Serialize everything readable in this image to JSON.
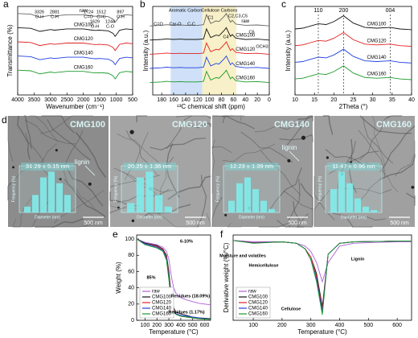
{
  "chart_data": [
    {
      "type": "line",
      "panel": "a",
      "xlabel": "Wavenumber (cm⁻¹)",
      "ylabel": "Transmittance (%)",
      "xlim": [
        4000,
        500
      ],
      "xticks": [
        4000,
        3500,
        3000,
        2500,
        2000,
        1500,
        1000,
        500
      ],
      "ylim": [
        0,
        100
      ],
      "x": [
        4000,
        3600,
        3326,
        3000,
        2881,
        2500,
        2000,
        1724,
        1629,
        1512,
        1244,
        1100,
        1030,
        897,
        700,
        500
      ],
      "series": [
        {
          "name": "raw",
          "color": "#666666",
          "values": [
            92,
            91.3,
            87.8,
            89.9,
            89.2,
            90.6,
            90.6,
            89.2,
            88.9,
            89.2,
            88.5,
            85.7,
            82.2,
            89.2,
            90.6,
            89.9
          ]
        },
        {
          "name": "CMG100",
          "color": "#111111",
          "values": [
            76,
            75.3,
            71.8,
            73.9,
            73.2,
            74.6,
            74.6,
            73.2,
            72.9,
            73.2,
            72.5,
            69.7,
            66.2,
            73.2,
            74.6,
            73.9
          ]
        },
        {
          "name": "CMG120",
          "color": "#e02020",
          "values": [
            60,
            59.3,
            55.8,
            57.9,
            57.2,
            58.6,
            58.6,
            57.2,
            56.9,
            57.2,
            56.5,
            53.7,
            50.2,
            57.2,
            58.6,
            57.9
          ]
        },
        {
          "name": "CMG140",
          "color": "#2040e0",
          "values": [
            44,
            43.3,
            39.8,
            41.9,
            41.2,
            42.6,
            42.6,
            41.2,
            40.9,
            41.2,
            40.5,
            37.7,
            34.2,
            41.2,
            42.6,
            41.9
          ]
        },
        {
          "name": "CMG160",
          "color": "#1a9a2a",
          "values": [
            28,
            27.3,
            23.8,
            25.9,
            25.2,
            26.6,
            26.6,
            25.2,
            24.9,
            25.2,
            24.5,
            21.7,
            18.2,
            25.2,
            26.6,
            25.9
          ]
        }
      ],
      "inline_labels": true,
      "annotations": [
        "3326",
        "O-H",
        "2881",
        "C-H",
        "1724",
        "C=O",
        "1629",
        "O-H",
        "1512",
        "C=C",
        "1244",
        "C-O",
        "897",
        "C-H"
      ]
    },
    {
      "type": "line",
      "panel": "b",
      "xlabel": "¹³C chemical shift (ppm)",
      "ylabel": "Intensity (a.u.)",
      "xlim": [
        195,
        0
      ],
      "xticks": [
        180,
        160,
        140,
        120,
        100,
        80,
        60,
        40,
        20,
        0
      ],
      "ylim": [
        0,
        100
      ],
      "bands": [
        {
          "label": "Aromatic Carbons",
          "x": [
            165,
            112
          ],
          "color": "#cfe0f8"
        },
        {
          "label": "Cellulose Carbons",
          "x": [
            112,
            55
          ],
          "color": "#f8f0c8"
        }
      ],
      "x": [
        200,
        180,
        172,
        160,
        150,
        140,
        130,
        120,
        110,
        105,
        98,
        89,
        84,
        75,
        72,
        65,
        62,
        56,
        40,
        20,
        0
      ],
      "series": [
        {
          "name": "raw",
          "color": "#666666",
          "values": [
            78,
            78.7,
            79.4,
            78.7,
            79.1,
            78.7,
            78.7,
            78.7,
            79.4,
            90.6,
            80.8,
            83.6,
            82.9,
            89.2,
            92,
            82.2,
            84.3,
            80.1,
            78.7,
            79.1,
            78
          ]
        },
        {
          "name": "CMG100",
          "color": "#111111",
          "values": [
            62,
            62.7,
            63.4,
            62.7,
            63.1,
            62.7,
            62.7,
            62.7,
            63.4,
            74.6,
            64.8,
            67.6,
            66.9,
            73.2,
            76,
            66.2,
            68.3,
            64.1,
            62.7,
            63.1,
            62
          ]
        },
        {
          "name": "CMG120",
          "color": "#e02020",
          "values": [
            46,
            46.7,
            47.4,
            46.7,
            47.1,
            46.7,
            46.7,
            46.7,
            47.4,
            58.6,
            48.8,
            51.6,
            50.9,
            57.2,
            60,
            50.2,
            52.3,
            48.1,
            46.7,
            47.1,
            46
          ]
        },
        {
          "name": "CMG140",
          "color": "#2040e0",
          "values": [
            30,
            30.7,
            31.4,
            30.7,
            31.1,
            30.7,
            30.7,
            30.7,
            31.4,
            42.6,
            32.8,
            35.6,
            34.9,
            41.2,
            44,
            34.2,
            36.3,
            32.1,
            30.7,
            31.1,
            30
          ]
        },
        {
          "name": "CMG160",
          "color": "#1a9a2a",
          "values": [
            14,
            14.7,
            15.4,
            14.7,
            15.1,
            14.7,
            14.7,
            14.7,
            15.4,
            26.6,
            16.8,
            19.6,
            18.9,
            25.2,
            28,
            18.2,
            20.3,
            16.1,
            14.7,
            15.1,
            14
          ]
        }
      ],
      "inline_labels": true,
      "annotations": [
        "C=O",
        "Car-O",
        "C-C",
        "C1",
        "C4",
        "C2,C3,C5",
        "C6",
        "OCH3"
      ]
    },
    {
      "type": "line",
      "panel": "c",
      "xlabel": "2Theta (°)",
      "ylabel": "Intensity (a.u.)",
      "xlim": [
        10,
        40
      ],
      "xticks": [
        10,
        15,
        20,
        25,
        30,
        35,
        40
      ],
      "ylim": [
        0,
        85
      ],
      "vlines": [
        {
          "x": 16,
          "label": "110"
        },
        {
          "x": 22.5,
          "label": "200"
        },
        {
          "x": 34.5,
          "label": "004"
        }
      ],
      "x": [
        10,
        12,
        14,
        16,
        18,
        20,
        22.5,
        25,
        28,
        31,
        34.5,
        37,
        40
      ],
      "series": [
        {
          "name": "CMG100",
          "color": "#111111",
          "values": [
            63.4,
            64.1,
            66.2,
            68.3,
            67.6,
            70.4,
            76,
            69,
            64.8,
            64.1,
            64.8,
            63.4,
            62.7
          ]
        },
        {
          "name": "CMG120",
          "color": "#e02020",
          "values": [
            47.4,
            48.1,
            50.2,
            52.3,
            51.6,
            54.4,
            60,
            53,
            48.8,
            48.1,
            48.8,
            47.4,
            46.7
          ]
        },
        {
          "name": "CMG140",
          "color": "#2040e0",
          "values": [
            31.4,
            32.1,
            34.2,
            36.3,
            35.6,
            38.4,
            44,
            37,
            32.8,
            32.1,
            32.8,
            31.4,
            30.7
          ]
        },
        {
          "name": "CMG160",
          "color": "#1a9a2a",
          "values": [
            15.4,
            16.1,
            18.2,
            20.3,
            19.6,
            22.4,
            28,
            21,
            16.8,
            16.1,
            16.8,
            15.4,
            14.7
          ]
        }
      ],
      "inline_labels": true
    },
    {
      "type": "line",
      "panel": "e",
      "xlabel": "Temperature (°C)",
      "ylabel": "Weight (%)",
      "xlim": [
        30,
        650
      ],
      "xticks": [
        100,
        200,
        300,
        400,
        500,
        600
      ],
      "ylim": [
        0,
        105
      ],
      "yticks": [
        0,
        20,
        40,
        60,
        80,
        100
      ],
      "x": [
        30,
        100,
        200,
        250,
        280,
        300,
        320,
        340,
        360,
        400,
        450,
        500,
        550,
        600,
        650
      ],
      "series": [
        {
          "name": "raw",
          "color": "#b060d8",
          "values": [
            100,
            96,
            93,
            90,
            85,
            75,
            55,
            40,
            33,
            28,
            25,
            23,
            21,
            20,
            19
          ]
        },
        {
          "name": "CMG100",
          "color": "#111111",
          "values": [
            100,
            95,
            92,
            88,
            80,
            60,
            30,
            15,
            10,
            8,
            6,
            4,
            3,
            2.5,
            2
          ]
        },
        {
          "name": "CMG120",
          "color": "#e02020",
          "values": [
            100,
            94,
            91,
            87,
            78,
            55,
            25,
            12,
            8,
            6,
            4,
            3,
            2,
            1.5,
            1.2
          ]
        },
        {
          "name": "CMG140",
          "color": "#2040e0",
          "values": [
            100,
            94,
            90,
            86,
            76,
            52,
            24,
            11,
            8,
            6,
            5,
            4,
            3,
            2,
            1.5
          ]
        },
        {
          "name": "CMG160",
          "color": "#1a9a2a",
          "values": [
            100,
            93,
            89,
            85,
            74,
            50,
            22,
            10,
            7,
            5,
            4,
            3,
            2,
            1.5,
            1.2
          ]
        }
      ],
      "legend": "lower left",
      "annotations": [
        "6-10%",
        "85%",
        "Residues (18.09%)",
        "Residues (1.17%)"
      ]
    },
    {
      "type": "line",
      "panel": "f",
      "xlabel": "Temperature (°C)",
      "ylabel": "Derivative weight (%/°C)",
      "xlim": [
        30,
        650
      ],
      "xticks": [
        100,
        200,
        300,
        400,
        500,
        600
      ],
      "ylim": [
        -2.9,
        0.2
      ],
      "x": [
        30,
        100,
        200,
        250,
        280,
        300,
        320,
        340,
        360,
        400,
        450,
        500,
        550,
        600,
        650
      ],
      "series": [
        {
          "name": "raw",
          "color": "#b060d8",
          "values": [
            0,
            -0.05,
            -0.05,
            -0.1,
            -0.2,
            -0.4,
            -0.8,
            -1.5,
            -0.8,
            -0.2,
            -0.1,
            -0.08,
            -0.06,
            -0.05,
            -0.05
          ]
        },
        {
          "name": "CMG100",
          "color": "#111111",
          "values": [
            0,
            -0.08,
            -0.05,
            -0.1,
            -0.3,
            -0.6,
            -1.2,
            -2.4,
            -0.5,
            -0.1,
            -0.05,
            -0.04,
            -0.03,
            -0.02,
            -0.02
          ]
        },
        {
          "name": "CMG120",
          "color": "#e02020",
          "values": [
            0,
            -0.08,
            -0.05,
            -0.1,
            -0.3,
            -0.6,
            -1.3,
            -2.5,
            -0.5,
            -0.1,
            -0.05,
            -0.04,
            -0.03,
            -0.02,
            -0.02
          ]
        },
        {
          "name": "CMG140",
          "color": "#2040e0",
          "values": [
            0,
            -0.09,
            -0.05,
            -0.1,
            -0.3,
            -0.7,
            -1.4,
            -2.6,
            -0.5,
            -0.1,
            -0.05,
            -0.04,
            -0.03,
            -0.02,
            -0.02
          ]
        },
        {
          "name": "CMG160",
          "color": "#1a9a2a",
          "values": [
            0,
            -0.1,
            -0.05,
            -0.1,
            -0.3,
            -0.7,
            -1.5,
            -2.7,
            -0.5,
            -0.1,
            -0.05,
            -0.04,
            -0.03,
            -0.02,
            -0.02
          ]
        }
      ],
      "legend": "lower left",
      "annotations": [
        "Moisture and volatiles",
        "Hemicellulose",
        "Cellulose",
        "Lignin"
      ]
    }
  ],
  "tem": {
    "panel": "d",
    "scale_bar": "500 nm",
    "hist_ylabel": "Frequency (%)",
    "hist_xlabel": "Diameter (nm)",
    "hist_ylim": [
      0,
      40
    ],
    "images": [
      {
        "label": "CMG100",
        "size": "31.29 ± 5.15 nm",
        "note": "lignin",
        "hist": [
          5,
          15,
          30,
          35,
          25,
          15
        ]
      },
      {
        "label": "CMG120",
        "size": "20.25 ± 1.36 nm",
        "hist": [
          8,
          30,
          35,
          15,
          5
        ]
      },
      {
        "label": "CMG140",
        "size": "12.23 ± 1.39 nm",
        "note": "lignin",
        "hist": [
          10,
          25,
          30,
          20,
          10,
          3
        ]
      },
      {
        "label": "CMG160",
        "size": "11.47 ± 0.96 nm",
        "hist": [
          20,
          35,
          25,
          12,
          5,
          2
        ]
      }
    ]
  }
}
